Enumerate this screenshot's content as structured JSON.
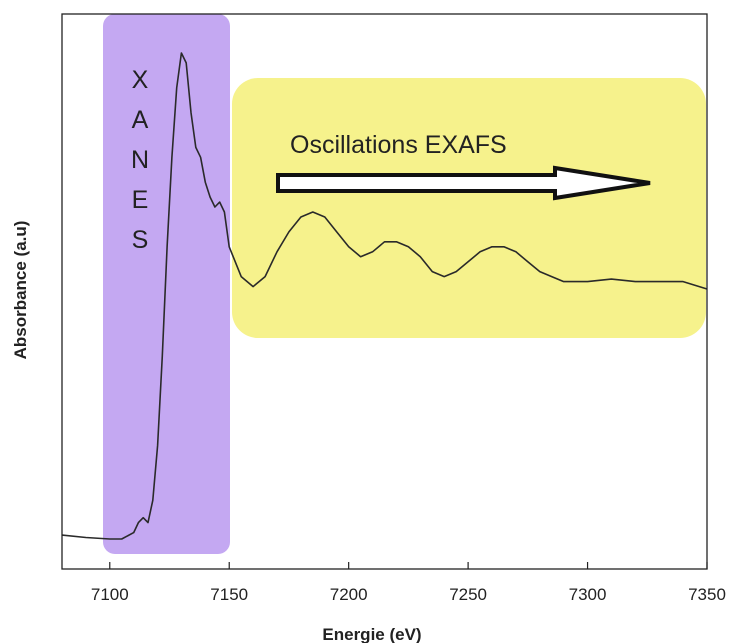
{
  "chart_data": {
    "type": "line",
    "title": "",
    "xlabel": "Energie (eV)",
    "ylabel": "Absorbance (a.u)",
    "xlim": [
      7080,
      7350
    ],
    "ylim": [
      0,
      1.0
    ],
    "xticks": [
      7100,
      7150,
      7200,
      7250,
      7300,
      7350
    ],
    "yticks_shown": false,
    "grid": false,
    "series": [
      {
        "color": "#2a2a2a",
        "x": [
          7080,
          7090,
          7100,
          7105,
          7110,
          7112,
          7114,
          7116,
          7118,
          7120,
          7122,
          7124,
          7126,
          7128,
          7130,
          7132,
          7134,
          7136,
          7138,
          7140,
          7142,
          7144,
          7146,
          7148,
          7150,
          7155,
          7160,
          7165,
          7170,
          7175,
          7180,
          7185,
          7190,
          7195,
          7200,
          7205,
          7210,
          7215,
          7220,
          7225,
          7230,
          7235,
          7240,
          7245,
          7250,
          7255,
          7260,
          7265,
          7270,
          7275,
          7280,
          7285,
          7290,
          7295,
          7300,
          7310,
          7320,
          7330,
          7340,
          7350
        ],
        "y": [
          0.02,
          0.015,
          0.012,
          0.012,
          0.025,
          0.045,
          0.055,
          0.045,
          0.09,
          0.2,
          0.38,
          0.6,
          0.78,
          0.92,
          0.99,
          0.97,
          0.87,
          0.8,
          0.78,
          0.73,
          0.7,
          0.68,
          0.69,
          0.67,
          0.6,
          0.54,
          0.52,
          0.54,
          0.59,
          0.63,
          0.66,
          0.67,
          0.66,
          0.63,
          0.6,
          0.58,
          0.59,
          0.61,
          0.61,
          0.6,
          0.58,
          0.55,
          0.54,
          0.55,
          0.57,
          0.59,
          0.6,
          0.6,
          0.59,
          0.57,
          0.55,
          0.54,
          0.53,
          0.53,
          0.53,
          0.535,
          0.53,
          0.53,
          0.53,
          0.515
        ]
      }
    ],
    "regions": [
      {
        "label": "X A N E S",
        "x_range": [
          7100,
          7148
        ],
        "color": "#c4a8f2"
      },
      {
        "label": "Oscillations EXAFS",
        "x_range": [
          7150,
          7350
        ],
        "color": "#f6f28c"
      }
    ],
    "annotations": [
      {
        "text": "Oscillations EXAFS"
      },
      {
        "type": "arrow",
        "direction": "right",
        "x_range": [
          7170,
          7325
        ]
      }
    ]
  },
  "xanes_letters": [
    "X",
    "A",
    "N",
    "E",
    "S"
  ]
}
